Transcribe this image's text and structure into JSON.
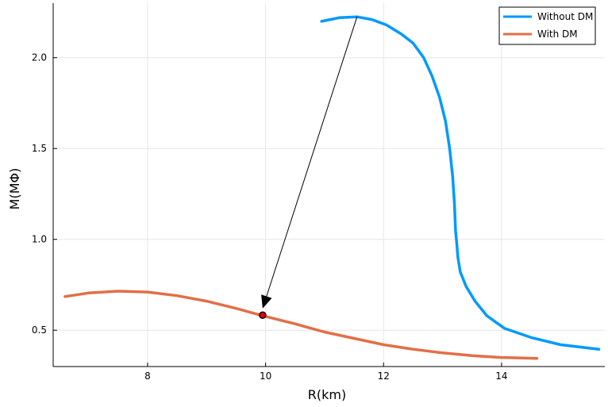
{
  "chart_data": {
    "type": "line",
    "xlabel": "R(km)",
    "ylabel": "M(MΦ)",
    "xlim": [
      6.4,
      15.75
    ],
    "ylim": [
      0.3,
      2.3
    ],
    "xticks": [
      8,
      10,
      12,
      14
    ],
    "yticks": [
      0.5,
      1.0,
      1.5,
      2.0
    ],
    "xtick_labels": [
      "8",
      "10",
      "12",
      "14"
    ],
    "ytick_labels": [
      "0.5",
      "1.0",
      "1.5",
      "2.0"
    ],
    "grid": true,
    "legend_position": "top-right",
    "series": [
      {
        "name": "Without DM",
        "color": "#009AFA",
        "x": [
          10.95,
          11.25,
          11.55,
          11.8,
          12.05,
          12.3,
          12.5,
          12.68,
          12.82,
          12.95,
          13.05,
          13.12,
          13.17,
          13.2,
          13.22,
          13.24,
          13.26,
          13.3,
          13.4,
          13.55,
          13.75,
          14.05,
          14.5,
          15.0,
          15.65
        ],
        "y": [
          2.2,
          2.22,
          2.225,
          2.21,
          2.18,
          2.13,
          2.08,
          2.0,
          1.9,
          1.78,
          1.65,
          1.5,
          1.35,
          1.2,
          1.05,
          0.98,
          0.9,
          0.82,
          0.74,
          0.66,
          0.58,
          0.51,
          0.46,
          0.42,
          0.395
        ]
      },
      {
        "name": "With DM",
        "color": "#E26F46",
        "x": [
          6.6,
          7.0,
          7.5,
          8.0,
          8.5,
          9.0,
          9.5,
          9.95,
          10.5,
          11.0,
          11.5,
          12.0,
          12.5,
          13.0,
          13.5,
          14.0,
          14.6
        ],
        "y": [
          0.685,
          0.705,
          0.715,
          0.71,
          0.69,
          0.66,
          0.62,
          0.58,
          0.535,
          0.49,
          0.455,
          0.42,
          0.395,
          0.375,
          0.36,
          0.35,
          0.345
        ]
      }
    ],
    "annotations": [
      {
        "type": "arrow",
        "from": [
          11.55,
          2.225
        ],
        "to": [
          9.95,
          0.62
        ]
      },
      {
        "type": "point",
        "x": 9.95,
        "y": 0.583,
        "color": "#E8000B"
      }
    ]
  }
}
